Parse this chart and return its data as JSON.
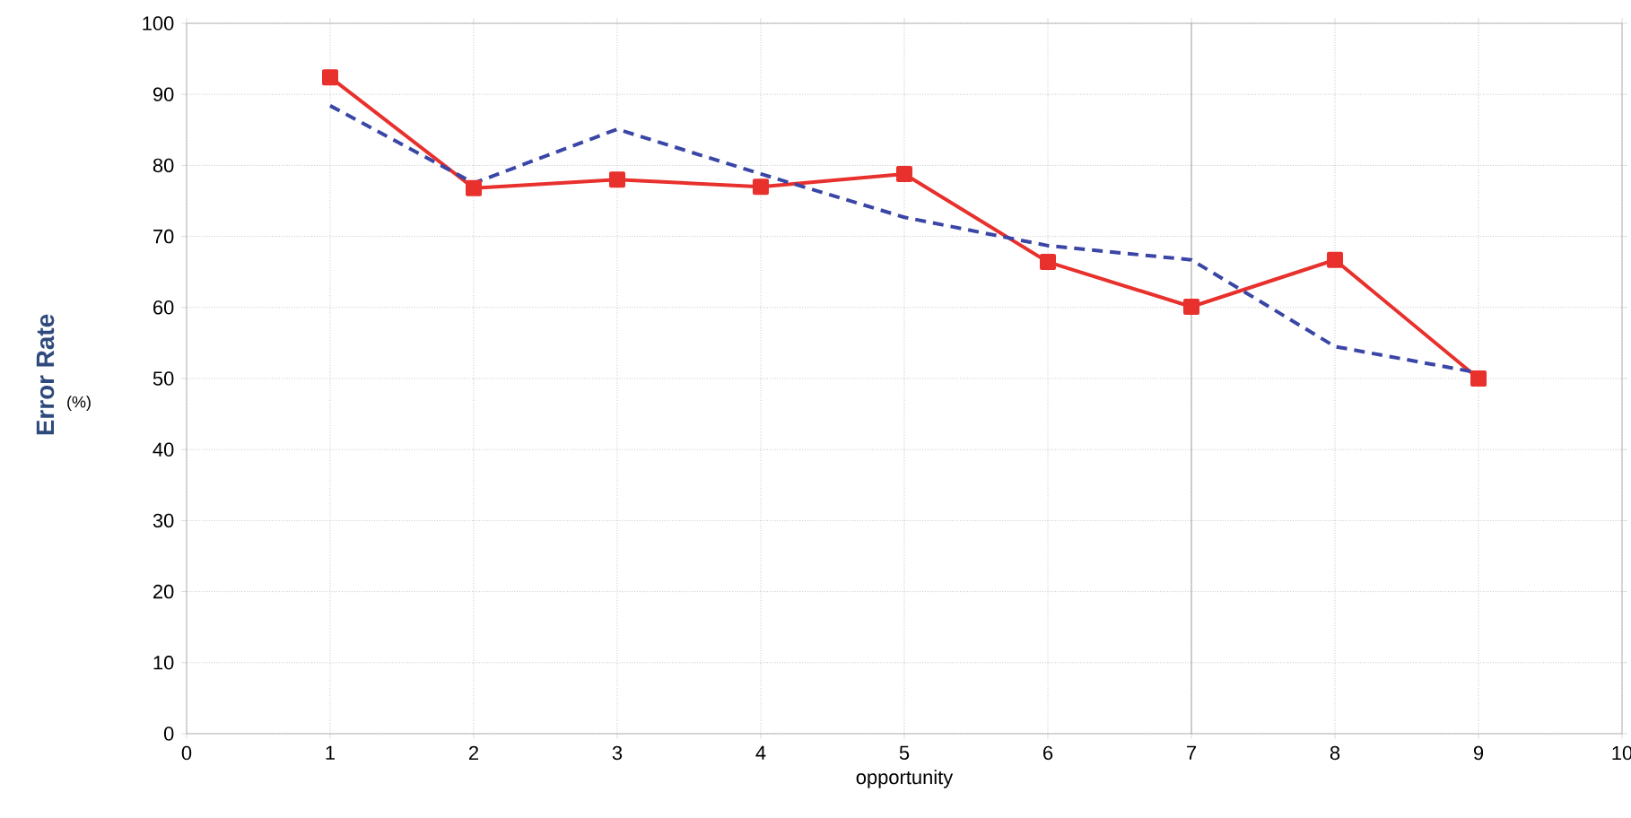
{
  "chart_data": {
    "type": "line",
    "xlabel": "opportunity",
    "ylabel": "Error Rate",
    "annotations": [
      "(%)"
    ],
    "x": [
      1,
      2,
      3,
      4,
      5,
      6,
      7,
      8,
      9
    ],
    "series": [
      {
        "color": "#e8302c",
        "marker": "square",
        "line_style": "solid",
        "values": [
          92.4,
          76.8,
          78.0,
          77.0,
          78.8,
          66.4,
          60.1,
          66.7,
          50.0
        ]
      },
      {
        "color": "#3a46a6",
        "marker": "none",
        "line_style": "dashed",
        "values": [
          88.4,
          77.5,
          85.1,
          78.8,
          72.7,
          68.7,
          66.7,
          54.5,
          50.8
        ]
      }
    ],
    "xlim": [
      0,
      10
    ],
    "xticks": [
      0,
      1,
      2,
      3,
      4,
      5,
      6,
      7,
      8,
      9,
      10
    ],
    "ylim": [
      0,
      100
    ],
    "yticks": [
      0,
      10,
      20,
      30,
      40,
      50,
      60,
      70,
      80,
      90,
      100
    ],
    "grid": true,
    "ref_lines": [
      {
        "axis": "x",
        "value": 7,
        "color": "#909090",
        "line_style": "solid"
      }
    ]
  }
}
